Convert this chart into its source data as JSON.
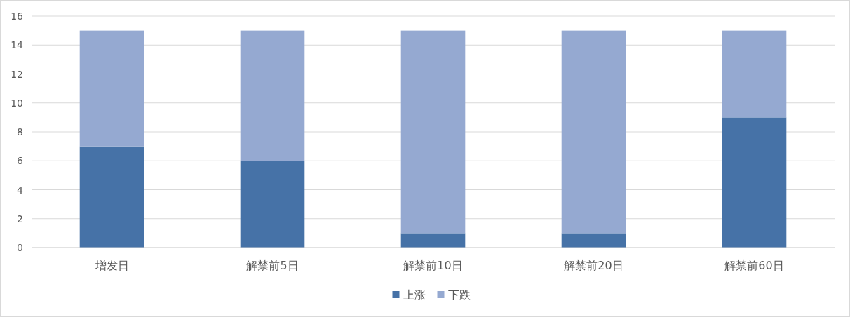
{
  "chart_data": {
    "type": "bar",
    "stacked": true,
    "categories": [
      "增发日",
      "解禁前5日",
      "解禁前10日",
      "解禁前20日",
      "解禁前60日"
    ],
    "series": [
      {
        "name": "上涨",
        "color": "#4672a7",
        "values": [
          7,
          6,
          1,
          1,
          9
        ]
      },
      {
        "name": "下跌",
        "color": "#95a9d1",
        "values": [
          8,
          9,
          14,
          14,
          6
        ]
      }
    ],
    "ylim": [
      0,
      16
    ],
    "yticks": [
      0,
      2,
      4,
      6,
      8,
      10,
      12,
      14,
      16
    ],
    "grid": "y",
    "legend": "bottom"
  }
}
